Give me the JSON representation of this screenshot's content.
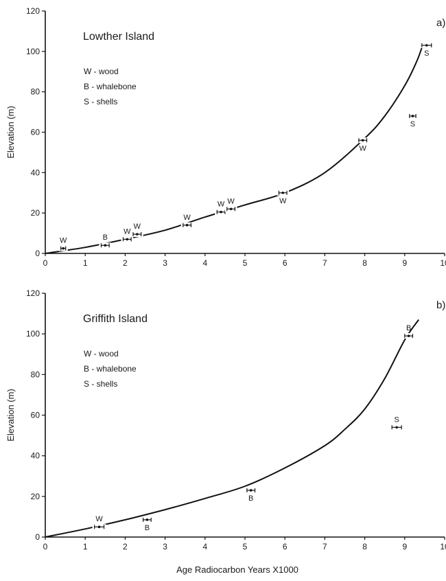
{
  "x_axis_title": "Age Radiocarbon Years  X1000",
  "chart_data": [
    {
      "type": "scatter",
      "panel_label": "a)",
      "title": "Lowther Island",
      "ylabel": "Elevation (m)",
      "xlabel": "",
      "xlim": [
        0,
        10
      ],
      "ylim": [
        0,
        120
      ],
      "x_ticks": [
        "0",
        "1",
        "2",
        "3",
        "4",
        "5",
        "6",
        "7",
        "8",
        "9",
        "10"
      ],
      "y_ticks": [
        "0",
        "20",
        "40",
        "60",
        "80",
        "100",
        "120"
      ],
      "legend": [
        "W - wood",
        "B - whalebone",
        "S - shells"
      ],
      "legend_position": "top-left",
      "grid": false,
      "curve": {
        "x": [
          0,
          1,
          2,
          3,
          4,
          5,
          6,
          7,
          8,
          8.5,
          9,
          9.3,
          9.45
        ],
        "y": [
          0,
          3,
          7,
          11.5,
          18,
          24,
          30,
          40,
          57,
          68,
          83,
          95,
          103
        ]
      },
      "points": [
        {
          "x": 0.45,
          "y": 2.5,
          "err": 0.06,
          "label": "W",
          "label_pos": "above"
        },
        {
          "x": 1.5,
          "y": 4,
          "err": 0.1,
          "label": "B",
          "label_pos": "above"
        },
        {
          "x": 2.05,
          "y": 7,
          "err": 0.1,
          "label": "W",
          "label_pos": "above"
        },
        {
          "x": 2.3,
          "y": 9.5,
          "err": 0.1,
          "label": "W",
          "label_pos": "above"
        },
        {
          "x": 3.55,
          "y": 14,
          "err": 0.1,
          "label": "W",
          "label_pos": "above"
        },
        {
          "x": 4.4,
          "y": 20.5,
          "err": 0.1,
          "label": "W",
          "label_pos": "above"
        },
        {
          "x": 4.65,
          "y": 22,
          "err": 0.1,
          "label": "W",
          "label_pos": "above"
        },
        {
          "x": 5.95,
          "y": 30,
          "err": 0.1,
          "label": "W",
          "label_pos": "below"
        },
        {
          "x": 7.95,
          "y": 56,
          "err": 0.1,
          "label": "W",
          "label_pos": "below"
        },
        {
          "x": 9.55,
          "y": 103,
          "err": 0.12,
          "label": "S",
          "label_pos": "below"
        },
        {
          "x": 9.2,
          "y": 68,
          "err": 0.08,
          "label": "S",
          "label_pos": "below"
        }
      ]
    },
    {
      "type": "scatter",
      "panel_label": "b)",
      "title": "Griffith Island",
      "ylabel": "Elevation (m)",
      "xlabel": "Age Radiocarbon Years  X1000",
      "xlim": [
        0,
        10
      ],
      "ylim": [
        0,
        120
      ],
      "x_ticks": [
        "0",
        "1",
        "2",
        "3",
        "4",
        "5",
        "6",
        "7",
        "8",
        "9",
        "10"
      ],
      "y_ticks": [
        "0",
        "20",
        "40",
        "60",
        "80",
        "100",
        "120"
      ],
      "legend": [
        "W - wood",
        "B - whalebone",
        "S - shells"
      ],
      "legend_position": "top-left",
      "grid": false,
      "curve": {
        "x": [
          0,
          1,
          2,
          3,
          4,
          5,
          6,
          7,
          7.5,
          8,
          8.5,
          9,
          9.35
        ],
        "y": [
          0,
          4,
          8.5,
          13.5,
          19,
          25,
          34,
          45,
          53,
          63,
          78,
          97,
          107
        ]
      },
      "points": [
        {
          "x": 1.35,
          "y": 5,
          "err": 0.12,
          "label": "W",
          "label_pos": "above"
        },
        {
          "x": 2.55,
          "y": 8.5,
          "err": 0.1,
          "label": "B",
          "label_pos": "below"
        },
        {
          "x": 5.15,
          "y": 23,
          "err": 0.1,
          "label": "B",
          "label_pos": "below"
        },
        {
          "x": 9.1,
          "y": 99,
          "err": 0.1,
          "label": "B",
          "label_pos": "above"
        },
        {
          "x": 8.8,
          "y": 54,
          "err": 0.12,
          "label": "S",
          "label_pos": "above"
        }
      ]
    }
  ]
}
